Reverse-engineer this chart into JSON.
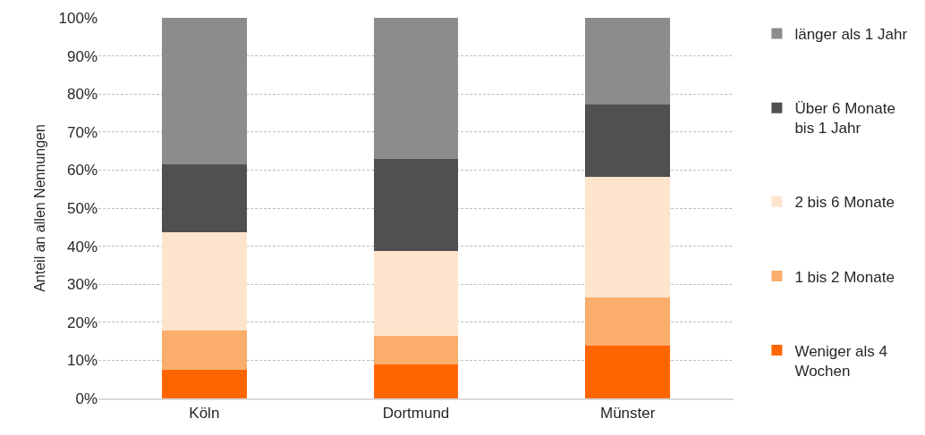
{
  "chart_data": {
    "type": "bar",
    "stacked": true,
    "ylabel": "Anteil an allen Nennungen",
    "categories": [
      "Köln",
      "Dortmund",
      "Münster"
    ],
    "series": [
      {
        "name": "Weniger als 4 Wochen",
        "color": "#ff6600",
        "values": [
          7.6,
          8.9,
          13.9
        ]
      },
      {
        "name": "1 bis 2 Monate",
        "color": "#fbad6b",
        "values": [
          10.2,
          7.5,
          12.6
        ]
      },
      {
        "name": "2 bis 6 Monate",
        "color": "#fde5cd",
        "values": [
          25.9,
          22.3,
          31.7
        ]
      },
      {
        "name": "Über 6 Monate bis 1 Jahr",
        "color": "#505050",
        "values": [
          17.9,
          24.1,
          19.1
        ]
      },
      {
        "name": "länger als 1 Jahr",
        "color": "#8c8c8c",
        "values": [
          38.4,
          37.2,
          22.7
        ]
      }
    ],
    "ylim": [
      0,
      100
    ],
    "yticks": [
      {
        "value": 0,
        "label": "0%"
      },
      {
        "value": 10,
        "label": "10%"
      },
      {
        "value": 20,
        "label": "20%"
      },
      {
        "value": 30,
        "label": "30%"
      },
      {
        "value": 40,
        "label": "40%"
      },
      {
        "value": 50,
        "label": "50%"
      },
      {
        "value": 60,
        "label": "60%"
      },
      {
        "value": 70,
        "label": "70%"
      },
      {
        "value": 80,
        "label": "80%"
      },
      {
        "value": 90,
        "label": "90%"
      },
      {
        "value": 100,
        "label": "100%"
      }
    ],
    "grid": "y",
    "legend": "right"
  }
}
